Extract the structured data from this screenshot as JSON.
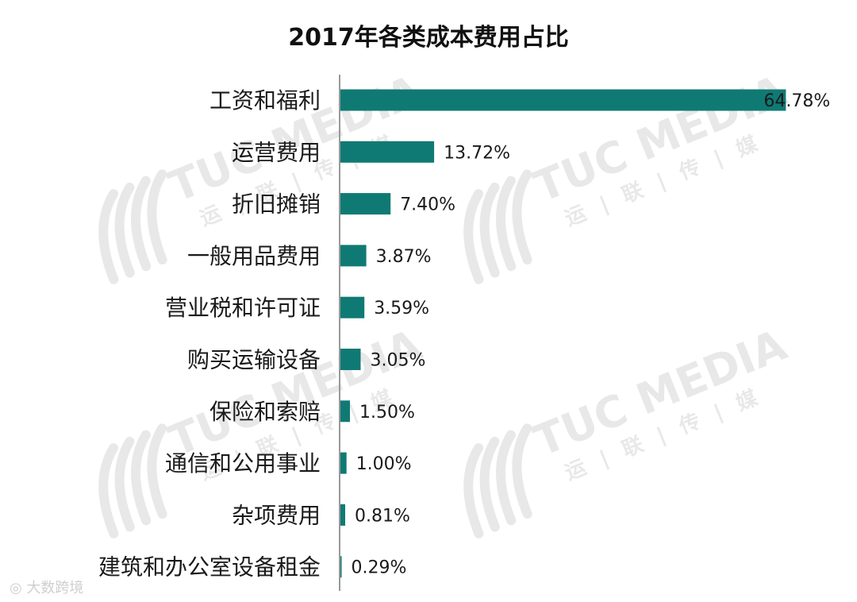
{
  "chart_data": {
    "type": "bar",
    "orientation": "horizontal",
    "title": "2017年各类成本费用占比",
    "categories": [
      "工资和福利",
      "运营费用",
      "折旧摊销",
      "一般用品费用",
      "营业税和许可证",
      "购买运输设备",
      "保险和索赔",
      "通信和公用事业",
      "杂项费用",
      "建筑和办公室设备租金"
    ],
    "values": [
      64.78,
      13.72,
      7.4,
      3.87,
      3.59,
      3.05,
      1.5,
      1.0,
      0.81,
      0.29
    ],
    "value_labels": [
      "64.78%",
      "13.72%",
      "7.40%",
      "3.87%",
      "3.59%",
      "3.05%",
      "1.50%",
      "1.00%",
      "0.81%",
      "0.29%"
    ],
    "bar_color": "#0f7a73",
    "axis_color": "#999999",
    "xlim": [
      0,
      66
    ],
    "grid": false,
    "legend": "none"
  },
  "watermark": {
    "brand": "TUC MEDIA",
    "chinese": "运 | 联 | 传 | 媒",
    "credit": "大数跨境"
  }
}
